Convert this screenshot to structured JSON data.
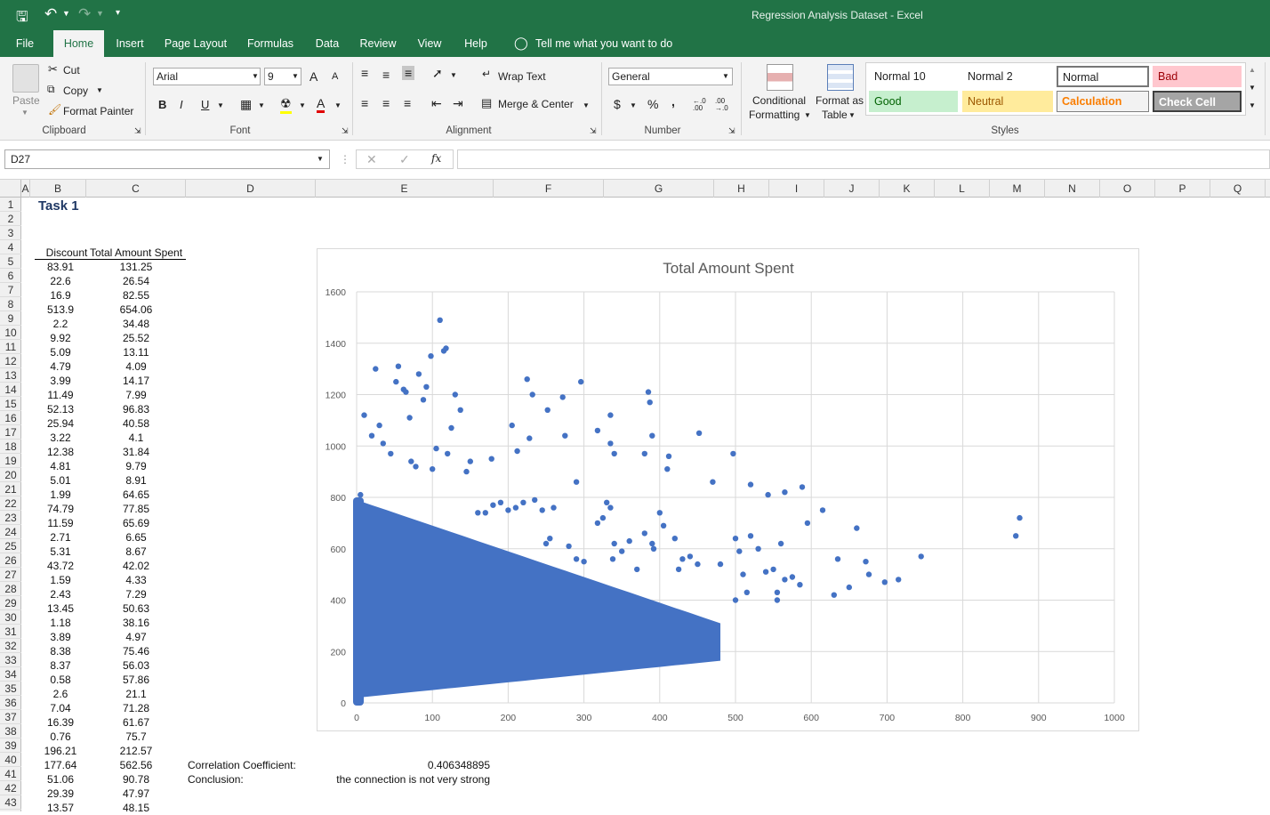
{
  "title_bar": {
    "title": "Regression Analysis Dataset - Excel"
  },
  "tabs": [
    "File",
    "Home",
    "Insert",
    "Page Layout",
    "Formulas",
    "Data",
    "Review",
    "View",
    "Help"
  ],
  "tell_me": "Tell me what you want to do",
  "clipboard": {
    "paste": "Paste",
    "cut": "Cut",
    "copy": "Copy",
    "format_painter": "Format Painter",
    "label": "Clipboard"
  },
  "font": {
    "name": "Arial",
    "size": "9",
    "label": "Font",
    "bold": "B",
    "italic": "I",
    "underline": "U",
    "grow": "A",
    "shrink": "A",
    "color": "A"
  },
  "alignment": {
    "wrap": "Wrap Text",
    "merge": "Merge & Center",
    "label": "Alignment"
  },
  "number": {
    "format": "General",
    "dollar": "$",
    "percent": "%",
    "comma": ",",
    "inc": "←.0 .00",
    "dec": ".00 →.0",
    "label": "Number"
  },
  "cond": {
    "line1": "Conditional",
    "line2": "Formatting",
    "fmt1": "Format as",
    "fmt2": "Table"
  },
  "styles": {
    "items": [
      "Normal 10",
      "Normal 2",
      "Normal",
      "Bad",
      "Good",
      "Neutral",
      "Calculation",
      "Check Cell"
    ],
    "label": "Styles"
  },
  "formula_bar": {
    "namebox": "D27",
    "cancel": "✕",
    "enter": "✓",
    "fx": "fx",
    "value": ""
  },
  "columns": [
    "A",
    "B",
    "C",
    "D",
    "E",
    "F",
    "G",
    "H",
    "I",
    "J",
    "K",
    "L",
    "M",
    "N",
    "O",
    "P",
    "Q"
  ],
  "rows": [
    "1",
    "2",
    "3",
    "4",
    "5",
    "6",
    "7",
    "8",
    "9",
    "10",
    "11",
    "12",
    "13",
    "14",
    "15",
    "16",
    "17",
    "18",
    "19",
    "20",
    "21",
    "22",
    "23",
    "24",
    "25",
    "26",
    "27",
    "28",
    "29",
    "30",
    "31",
    "32",
    "33",
    "34",
    "35",
    "36",
    "37",
    "38",
    "39",
    "40",
    "41",
    "42",
    "43"
  ],
  "sheet": {
    "task_title": "Task 1",
    "header_b": "Discount",
    "header_c": "Total Amount Spent",
    "discount": [
      "83.91",
      "22.6",
      "16.9",
      "513.9",
      "2.2",
      "9.92",
      "5.09",
      "4.79",
      "3.99",
      "11.49",
      "52.13",
      "25.94",
      "3.22",
      "12.38",
      "4.81",
      "5.01",
      "1.99",
      "74.79",
      "11.59",
      "2.71",
      "5.31",
      "43.72",
      "1.59",
      "2.43",
      "13.45",
      "1.18",
      "3.89",
      "8.38",
      "8.37",
      "0.58",
      "2.6",
      "7.04",
      "16.39",
      "0.76",
      "196.21",
      "177.64",
      "51.06",
      "29.39",
      "13.57"
    ],
    "total": [
      "131.25",
      "26.54",
      "82.55",
      "654.06",
      "34.48",
      "25.52",
      "13.11",
      "4.09",
      "14.17",
      "7.99",
      "96.83",
      "40.58",
      "4.1",
      "31.84",
      "9.79",
      "8.91",
      "64.65",
      "77.85",
      "65.69",
      "6.65",
      "8.67",
      "42.02",
      "4.33",
      "7.29",
      "50.63",
      "38.16",
      "4.97",
      "75.46",
      "56.03",
      "57.86",
      "21.1",
      "71.28",
      "61.67",
      "75.7",
      "212.57",
      "562.56",
      "90.78",
      "47.97",
      "48.15"
    ],
    "corr_label": "Correlation Coefficient:",
    "corr_value": "0.406348895",
    "concl_label": "Conclusion:",
    "concl_value": "the connection is not very strong"
  },
  "chart_data": {
    "type": "scatter",
    "title": "Total Amount Spent",
    "xlim": [
      0,
      1000
    ],
    "ylim": [
      0,
      1600
    ],
    "x_ticks": [
      "0",
      "100",
      "200",
      "300",
      "400",
      "500",
      "600",
      "700",
      "800",
      "900",
      "1000"
    ],
    "y_ticks": [
      "0",
      "200",
      "400",
      "600",
      "800",
      "1000",
      "1200",
      "1400",
      "1600"
    ],
    "grid": true,
    "series_color": "#4472c4",
    "series": [
      {
        "points": [
          [
            5,
            810
          ],
          [
            10,
            1120
          ],
          [
            20,
            1040
          ],
          [
            25,
            1300
          ],
          [
            30,
            1080
          ],
          [
            35,
            1010
          ],
          [
            45,
            970
          ],
          [
            52,
            1250
          ],
          [
            55,
            1310
          ],
          [
            62,
            1220
          ],
          [
            65,
            1210
          ],
          [
            70,
            1110
          ],
          [
            72,
            940
          ],
          [
            78,
            920
          ],
          [
            82,
            1280
          ],
          [
            88,
            1180
          ],
          [
            92,
            1230
          ],
          [
            98,
            1350
          ],
          [
            100,
            910
          ],
          [
            105,
            990
          ],
          [
            110,
            1490
          ],
          [
            118,
            1380
          ],
          [
            115,
            1370
          ],
          [
            120,
            970
          ],
          [
            125,
            1070
          ],
          [
            130,
            1200
          ],
          [
            137,
            1140
          ],
          [
            145,
            900
          ],
          [
            150,
            940
          ],
          [
            178,
            950
          ],
          [
            205,
            1080
          ],
          [
            212,
            980
          ],
          [
            225,
            1260
          ],
          [
            228,
            1030
          ],
          [
            232,
            1200
          ],
          [
            252,
            1140
          ],
          [
            272,
            1190
          ],
          [
            275,
            1040
          ],
          [
            296,
            1250
          ],
          [
            290,
            860
          ],
          [
            318,
            1060
          ],
          [
            335,
            1120
          ],
          [
            335,
            1010
          ],
          [
            340,
            970
          ],
          [
            380,
            970
          ],
          [
            385,
            1210
          ],
          [
            387,
            1170
          ],
          [
            390,
            1040
          ],
          [
            410,
            910
          ],
          [
            412,
            960
          ],
          [
            452,
            1050
          ],
          [
            470,
            860
          ],
          [
            497,
            970
          ],
          [
            520,
            850
          ],
          [
            543,
            810
          ],
          [
            565,
            820
          ],
          [
            588,
            840
          ],
          [
            595,
            700
          ],
          [
            615,
            750
          ],
          [
            630,
            420
          ],
          [
            635,
            560
          ],
          [
            650,
            450
          ],
          [
            660,
            680
          ],
          [
            672,
            550
          ],
          [
            676,
            500
          ],
          [
            697,
            470
          ],
          [
            715,
            480
          ],
          [
            745,
            570
          ],
          [
            870,
            650
          ],
          [
            875,
            720
          ],
          [
            500,
            640
          ],
          [
            505,
            590
          ],
          [
            510,
            500
          ],
          [
            515,
            430
          ],
          [
            520,
            650
          ],
          [
            530,
            600
          ],
          [
            540,
            510
          ],
          [
            550,
            520
          ],
          [
            555,
            430
          ],
          [
            560,
            620
          ],
          [
            565,
            480
          ],
          [
            575,
            490
          ],
          [
            585,
            460
          ],
          [
            555,
            400
          ],
          [
            500,
            400
          ],
          [
            480,
            540
          ],
          [
            450,
            540
          ],
          [
            440,
            570
          ],
          [
            420,
            640
          ],
          [
            425,
            520
          ],
          [
            430,
            560
          ],
          [
            400,
            740
          ],
          [
            405,
            690
          ],
          [
            390,
            620
          ],
          [
            392,
            600
          ],
          [
            380,
            660
          ],
          [
            370,
            520
          ],
          [
            360,
            630
          ],
          [
            350,
            590
          ],
          [
            340,
            620
          ],
          [
            338,
            560
          ],
          [
            335,
            760
          ],
          [
            330,
            780
          ],
          [
            325,
            720
          ],
          [
            318,
            700
          ],
          [
            300,
            550
          ],
          [
            290,
            560
          ],
          [
            280,
            610
          ],
          [
            260,
            760
          ],
          [
            255,
            640
          ],
          [
            250,
            620
          ],
          [
            245,
            750
          ],
          [
            235,
            790
          ],
          [
            220,
            780
          ],
          [
            210,
            760
          ],
          [
            200,
            750
          ],
          [
            190,
            780
          ],
          [
            180,
            770
          ],
          [
            170,
            740
          ],
          [
            160,
            740
          ]
        ]
      }
    ],
    "dense_region": {
      "description": "dense band of points between y≈0.3x+20 and y≈790−1.0x for x from 0 to 480"
    }
  }
}
